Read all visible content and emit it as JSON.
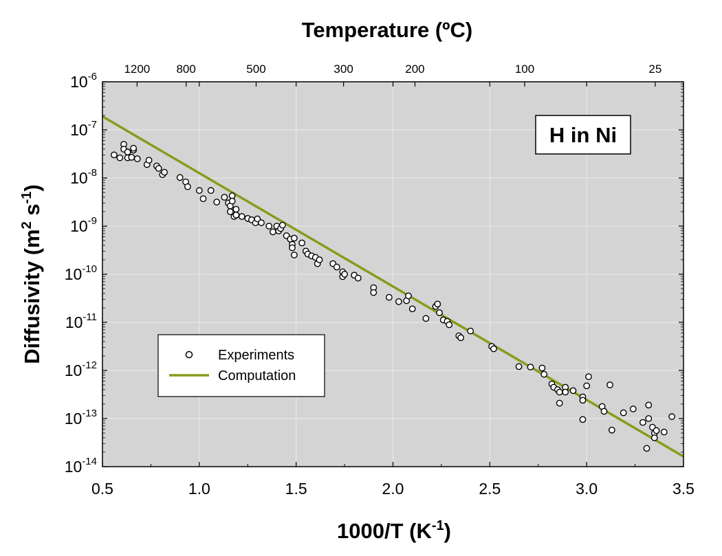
{
  "chart_data": {
    "type": "scatter",
    "title": "",
    "xlabel": "1000/T (K",
    "xlabel_sup": "-1",
    "xlabel_tail": ")",
    "ylabel": "Diffusivity (m",
    "ylabel_sup1": "2",
    "ylabel_mid": " s",
    "ylabel_sup2": "-1",
    "ylabel_tail": ")",
    "top_axis_label": "Temperature (ºC)",
    "xlim": [
      0.5,
      3.5
    ],
    "ylim_log10": [
      -14,
      -6
    ],
    "y_scale": "log",
    "grid": true,
    "x_ticks": [
      "0.5",
      "1.0",
      "1.5",
      "2.0",
      "2.5",
      "3.0",
      "3.5"
    ],
    "y_tick_base": "10",
    "y_tick_exponents": [
      "-6",
      "-7",
      "-8",
      "-9",
      "-10",
      "-11",
      "-12",
      "-13",
      "-14"
    ],
    "top_ticks": [
      {
        "label": "1200",
        "celsius": 1200
      },
      {
        "label": "800",
        "celsius": 800
      },
      {
        "label": "500",
        "celsius": 500
      },
      {
        "label": "300",
        "celsius": 300
      },
      {
        "label": "200",
        "celsius": 200
      },
      {
        "label": "100",
        "celsius": 100
      },
      {
        "label": "25",
        "celsius": 25
      }
    ],
    "annotation": "H in Ni",
    "legend_position": "bottom-left",
    "colors": {
      "plot_background": "#d4d4d4",
      "grid": "#ebebeb",
      "computation": "#8a9a1b",
      "marker_fill": "#ffffff",
      "marker_edge": "#000000"
    },
    "series": [
      {
        "name": "Experiments",
        "kind": "markers",
        "points": [
          [
            0.56,
            -7.52
          ],
          [
            0.59,
            -7.58
          ],
          [
            0.61,
            -7.3
          ],
          [
            0.61,
            -7.4
          ],
          [
            0.63,
            -7.58
          ],
          [
            0.63,
            -7.46
          ],
          [
            0.65,
            -7.57
          ],
          [
            0.66,
            -7.42
          ],
          [
            0.66,
            -7.38
          ],
          [
            0.68,
            -7.6
          ],
          [
            0.73,
            -7.72
          ],
          [
            0.74,
            -7.63
          ],
          [
            0.78,
            -7.75
          ],
          [
            0.79,
            -7.8
          ],
          [
            0.81,
            -7.93
          ],
          [
            0.82,
            -7.88
          ],
          [
            0.9,
            -7.99
          ],
          [
            0.93,
            -8.08
          ],
          [
            0.94,
            -8.18
          ],
          [
            1.0,
            -8.26
          ],
          [
            1.02,
            -8.43
          ],
          [
            1.06,
            -8.26
          ],
          [
            1.09,
            -8.5
          ],
          [
            1.13,
            -8.4
          ],
          [
            1.15,
            -8.52
          ],
          [
            1.16,
            -8.58
          ],
          [
            1.17,
            -8.37
          ],
          [
            1.16,
            -8.7
          ],
          [
            1.17,
            -8.48
          ],
          [
            1.18,
            -8.8
          ],
          [
            1.19,
            -8.65
          ],
          [
            1.19,
            -8.77
          ],
          [
            1.22,
            -8.8
          ],
          [
            1.25,
            -8.84
          ],
          [
            1.27,
            -8.87
          ],
          [
            1.29,
            -8.93
          ],
          [
            1.3,
            -8.85
          ],
          [
            1.32,
            -8.93
          ],
          [
            1.36,
            -9.0
          ],
          [
            1.38,
            -9.12
          ],
          [
            1.4,
            -9.0
          ],
          [
            1.41,
            -9.1
          ],
          [
            1.42,
            -9.05
          ],
          [
            1.43,
            -8.98
          ],
          [
            1.45,
            -9.2
          ],
          [
            1.47,
            -9.27
          ],
          [
            1.48,
            -9.38
          ],
          [
            1.49,
            -9.25
          ],
          [
            1.48,
            -9.45
          ],
          [
            1.49,
            -9.6
          ],
          [
            1.53,
            -9.35
          ],
          [
            1.55,
            -9.52
          ],
          [
            1.56,
            -9.58
          ],
          [
            1.58,
            -9.62
          ],
          [
            1.6,
            -9.65
          ],
          [
            1.61,
            -9.78
          ],
          [
            1.62,
            -9.7
          ],
          [
            1.69,
            -9.78
          ],
          [
            1.71,
            -9.85
          ],
          [
            1.74,
            -9.95
          ],
          [
            1.74,
            -10.05
          ],
          [
            1.75,
            -10.0
          ],
          [
            1.8,
            -10.02
          ],
          [
            1.82,
            -10.08
          ],
          [
            1.9,
            -10.28
          ],
          [
            1.9,
            -10.38
          ],
          [
            1.98,
            -10.48
          ],
          [
            2.03,
            -10.57
          ],
          [
            2.07,
            -10.55
          ],
          [
            2.08,
            -10.45
          ],
          [
            2.1,
            -10.72
          ],
          [
            2.17,
            -10.92
          ],
          [
            2.22,
            -10.67
          ],
          [
            2.23,
            -10.62
          ],
          [
            2.24,
            -10.8
          ],
          [
            2.26,
            -10.95
          ],
          [
            2.28,
            -10.98
          ],
          [
            2.29,
            -11.05
          ],
          [
            2.34,
            -11.28
          ],
          [
            2.35,
            -11.32
          ],
          [
            2.4,
            -11.18
          ],
          [
            2.51,
            -11.5
          ],
          [
            2.52,
            -11.55
          ],
          [
            2.65,
            -11.92
          ],
          [
            2.71,
            -11.93
          ],
          [
            2.77,
            -11.95
          ],
          [
            2.78,
            -12.08
          ],
          [
            2.82,
            -12.28
          ],
          [
            2.83,
            -12.35
          ],
          [
            2.85,
            -12.4
          ],
          [
            2.86,
            -12.45
          ],
          [
            2.86,
            -12.68
          ],
          [
            2.89,
            -12.35
          ],
          [
            2.89,
            -12.45
          ],
          [
            2.93,
            -12.42
          ],
          [
            2.98,
            -12.55
          ],
          [
            2.98,
            -12.62
          ],
          [
            2.98,
            -13.02
          ],
          [
            3.0,
            -12.32
          ],
          [
            3.01,
            -12.13
          ],
          [
            3.08,
            -12.75
          ],
          [
            3.09,
            -12.85
          ],
          [
            3.12,
            -12.3
          ],
          [
            3.13,
            -13.24
          ],
          [
            3.19,
            -12.88
          ],
          [
            3.24,
            -12.8
          ],
          [
            3.29,
            -13.08
          ],
          [
            3.31,
            -13.62
          ],
          [
            3.32,
            -12.72
          ],
          [
            3.32,
            -13.0
          ],
          [
            3.34,
            -13.18
          ],
          [
            3.35,
            -13.3
          ],
          [
            3.35,
            -13.4
          ],
          [
            3.36,
            -13.25
          ],
          [
            3.4,
            -13.28
          ],
          [
            3.44,
            -12.96
          ]
        ]
      },
      {
        "name": "Computation",
        "kind": "line",
        "points": [
          [
            0.5,
            -6.72
          ],
          [
            3.5,
            -13.79
          ]
        ]
      }
    ]
  }
}
